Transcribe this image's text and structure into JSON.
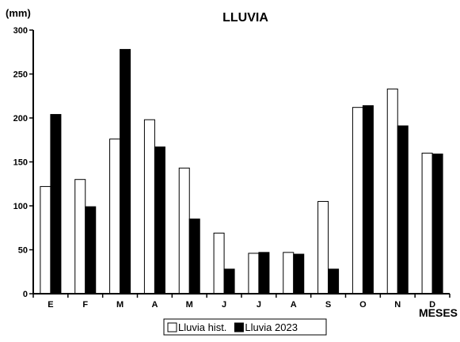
{
  "chart_data": {
    "type": "bar",
    "title": "LLUVIA",
    "ylabel": "(mm)",
    "xlabel": "MESES",
    "ylim": [
      0,
      300
    ],
    "yticks": [
      0,
      50,
      100,
      150,
      200,
      250,
      300
    ],
    "grid": false,
    "legend_position": "bottom-center",
    "categories": [
      "E",
      "F",
      "M",
      "A",
      "M",
      "J",
      "J",
      "A",
      "S",
      "O",
      "N",
      "D"
    ],
    "series": [
      {
        "name": "Lluvia hist.",
        "color": "#ffffff",
        "values": [
          122,
          130,
          176,
          198,
          143,
          69,
          46,
          47,
          105,
          212,
          233,
          160
        ]
      },
      {
        "name": "Lluvia 2023",
        "color": "#000000",
        "values": [
          204,
          99,
          278,
          167,
          85,
          28,
          47,
          45,
          28,
          214,
          191,
          159
        ]
      }
    ]
  }
}
